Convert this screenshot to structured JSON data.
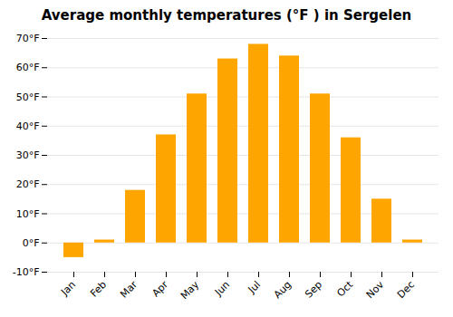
{
  "chart_data": {
    "type": "bar",
    "title": "Average monthly temperatures (°F ) in Sergelen",
    "categories": [
      "Jan",
      "Feb",
      "Mar",
      "Apr",
      "May",
      "Jun",
      "Jul",
      "Aug",
      "Sep",
      "Oct",
      "Nov",
      "Dec"
    ],
    "values": [
      -5,
      1,
      18,
      37,
      51,
      63,
      68,
      64,
      51,
      36,
      15,
      1
    ],
    "color": "#FFA500",
    "ylim": [
      -10,
      70
    ],
    "yticks": [
      {
        "value": -10,
        "label": "-10°F"
      },
      {
        "value": 0,
        "label": "0°F"
      },
      {
        "value": 10,
        "label": "10°F"
      },
      {
        "value": 20,
        "label": "20°F"
      },
      {
        "value": 30,
        "label": "30°F"
      },
      {
        "value": 40,
        "label": "40°F"
      },
      {
        "value": 50,
        "label": "50°F"
      },
      {
        "value": 60,
        "label": "60°F"
      },
      {
        "value": 70,
        "label": "70°F"
      }
    ],
    "grid": true
  }
}
